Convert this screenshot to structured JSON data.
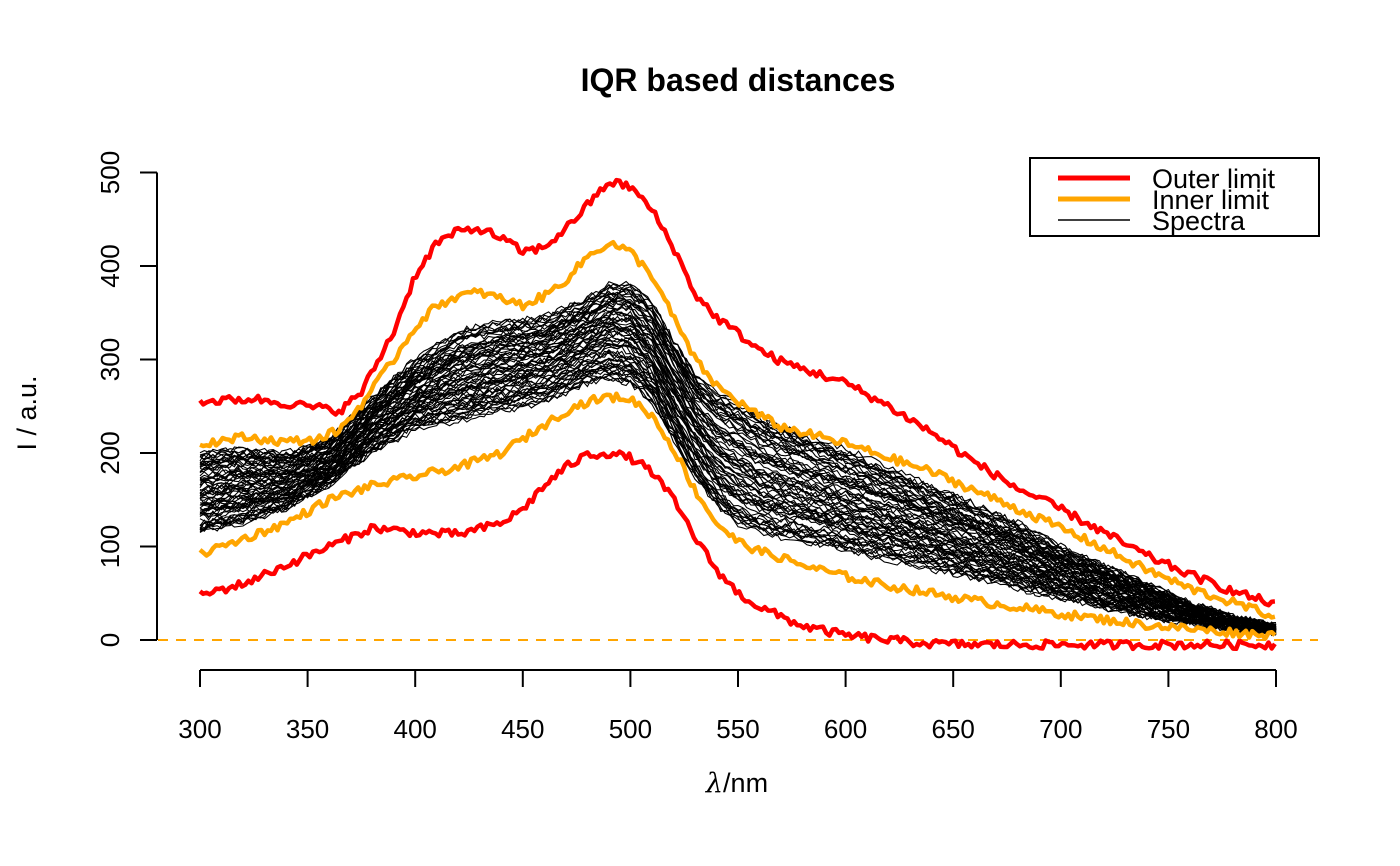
{
  "chart_data": {
    "type": "line",
    "title": "IQR based distances",
    "xlabel_symbol": "λ",
    "xlabel_unit": "/nm",
    "ylabel": "I / a.u.",
    "xlim": [
      300,
      800
    ],
    "ylim": [
      -30,
      515
    ],
    "x_ticks": [
      300,
      350,
      400,
      450,
      500,
      550,
      600,
      650,
      700,
      750,
      800
    ],
    "y_ticks": [
      0,
      100,
      200,
      300,
      400,
      500
    ],
    "legend_position": "top-right",
    "legend": [
      {
        "label": "Outer limit",
        "color": "#ff0000"
      },
      {
        "label": "Inner limit",
        "color": "#ffa500"
      },
      {
        "label": "Spectra",
        "color": "#000000"
      }
    ],
    "reference_line": {
      "y": 0,
      "color": "#ffa500",
      "style": "dashed"
    },
    "series": [
      {
        "name": "Outer limit",
        "color": "#ff0000",
        "x": [
          300,
          325,
          350,
          365,
          375,
          390,
          400,
          410,
          420,
          430,
          440,
          450,
          460,
          470,
          480,
          490,
          500,
          510,
          520,
          530,
          540,
          550,
          560,
          570,
          580,
          600,
          620,
          640,
          660,
          680,
          700,
          720,
          740,
          760,
          780,
          800
        ],
        "y": [
          255,
          258,
          250,
          245,
          265,
          330,
          390,
          425,
          437,
          440,
          430,
          415,
          420,
          440,
          465,
          490,
          485,
          460,
          420,
          370,
          345,
          328,
          310,
          298,
          290,
          275,
          250,
          222,
          190,
          162,
          140,
          115,
          90,
          70,
          52,
          38
        ]
      },
      {
        "name": "Outer limit",
        "color": "#ff0000",
        "x": [
          300,
          320,
          340,
          360,
          380,
          400,
          420,
          440,
          450,
          460,
          470,
          480,
          490,
          500,
          510,
          520,
          530,
          540,
          550,
          560,
          570,
          580,
          600,
          620,
          640,
          660,
          680,
          700,
          720,
          740,
          760,
          780,
          800
        ],
        "y": [
          48,
          60,
          80,
          100,
          120,
          115,
          113,
          125,
          140,
          165,
          185,
          198,
          200,
          195,
          180,
          150,
          110,
          75,
          50,
          35,
          25,
          15,
          5,
          0,
          -4,
          -5,
          -5,
          -5,
          -5,
          -5,
          -5,
          -5,
          -5
        ]
      },
      {
        "name": "Inner limit",
        "color": "#ffa500",
        "x": [
          300,
          320,
          340,
          355,
          365,
          375,
          390,
          400,
          410,
          420,
          430,
          440,
          450,
          460,
          470,
          480,
          490,
          500,
          510,
          520,
          530,
          540,
          550,
          560,
          570,
          580,
          600,
          620,
          640,
          660,
          680,
          700,
          720,
          740,
          760,
          780,
          800
        ],
        "y": [
          210,
          217,
          212,
          215,
          225,
          252,
          300,
          335,
          358,
          368,
          372,
          365,
          358,
          368,
          385,
          410,
          425,
          415,
          390,
          345,
          300,
          272,
          255,
          240,
          228,
          222,
          210,
          195,
          180,
          160,
          140,
          120,
          98,
          75,
          55,
          40,
          25
        ]
      },
      {
        "name": "Inner limit",
        "color": "#ffa500",
        "x": [
          300,
          320,
          340,
          360,
          380,
          400,
          420,
          440,
          450,
          460,
          470,
          480,
          490,
          500,
          510,
          520,
          530,
          540,
          550,
          560,
          570,
          580,
          600,
          620,
          640,
          660,
          680,
          700,
          720,
          740,
          760,
          780,
          800
        ],
        "y": [
          92,
          108,
          125,
          150,
          165,
          175,
          185,
          200,
          215,
          230,
          245,
          255,
          260,
          258,
          240,
          205,
          160,
          125,
          105,
          95,
          88,
          80,
          68,
          58,
          50,
          42,
          35,
          28,
          22,
          16,
          12,
          8,
          5
        ]
      }
    ],
    "spectra_band": {
      "name": "Spectra",
      "color": "#000000",
      "x": [
        300,
        320,
        340,
        360,
        380,
        400,
        420,
        440,
        460,
        480,
        490,
        500,
        510,
        520,
        530,
        540,
        550,
        560,
        580,
        600,
        620,
        640,
        660,
        680,
        700,
        720,
        740,
        760,
        780,
        800
      ],
      "lower": [
        115,
        125,
        140,
        165,
        200,
        225,
        235,
        245,
        255,
        275,
        280,
        275,
        255,
        215,
        175,
        145,
        125,
        115,
        105,
        95,
        85,
        75,
        65,
        55,
        45,
        35,
        25,
        18,
        12,
        8
      ],
      "upper": [
        200,
        205,
        200,
        215,
        260,
        300,
        330,
        340,
        345,
        365,
        380,
        380,
        360,
        320,
        285,
        265,
        255,
        240,
        220,
        205,
        185,
        165,
        145,
        125,
        100,
        80,
        60,
        40,
        25,
        15
      ]
    }
  }
}
